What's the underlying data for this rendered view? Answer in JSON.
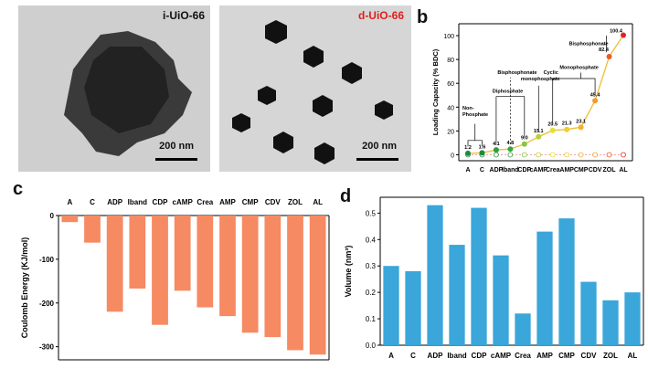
{
  "panels": {
    "a": {
      "letter": "a",
      "left_label": "i-UiO-66",
      "right_label": "d-UiO-66",
      "left_scale": "200 nm",
      "right_scale": "200 nm"
    },
    "b": {
      "letter": "b"
    },
    "c": {
      "letter": "c"
    },
    "d": {
      "letter": "d"
    }
  },
  "colors": {
    "orange_bar": "#f58a63",
    "blue_bar": "#3aa6d9",
    "left_label_color": "#111111",
    "right_label_color": "#e0201b"
  },
  "chart_data": [
    {
      "panel": "b",
      "type": "scatter",
      "categories": [
        "A",
        "C",
        "ADP",
        "Iband",
        "CDP",
        "cAMP",
        "Crea",
        "AMP",
        "CMP",
        "CDV",
        "ZOL",
        "AL"
      ],
      "ylabel": "Loading Capacity (% BDC)",
      "ylim": [
        -5,
        110
      ],
      "yticks": [
        0,
        20,
        40,
        60,
        80,
        100
      ],
      "series": [
        {
          "values": [
            1.2,
            1.6,
            4.1,
            4.8,
            9.0,
            15.1,
            20.5,
            21.3,
            23.1,
            45.4,
            82.4,
            100.4
          ],
          "point_colors": [
            "#1e8a3c",
            "#1e8a3c",
            "#2e9b3e",
            "#3aa342",
            "#8cc63f",
            "#b5d334",
            "#e6e030",
            "#f2cc2e",
            "#f5b02c",
            "#f39a2a",
            "#ea5b25",
            "#e02424"
          ],
          "line_color": "#f0c040"
        },
        {
          "values": [
            0,
            0,
            0,
            0,
            0,
            0,
            0,
            0,
            0,
            0,
            0,
            0
          ],
          "style": "dashed-hollow",
          "point_colors": [
            "#1e8a3c",
            "#1e8a3c",
            "#2e9b3e",
            "#3aa342",
            "#8cc63f",
            "#b5d334",
            "#e6e030",
            "#f2cc2e",
            "#f5b02c",
            "#f39a2a",
            "#ea5b25",
            "#e02424"
          ]
        }
      ],
      "data_labels": [
        "1.2",
        "1.6",
        "4.1",
        "4.8",
        "9.0",
        "15.1",
        "20.5",
        "21.3",
        "23.1",
        "45.4",
        "82.4",
        "100.4"
      ],
      "annotations": {
        "non_phosphate": "Non-\nPhosphate",
        "diphosphate": "Diphosphate",
        "bisphosphonate_low": "Bisphosphonate",
        "cyclic": "Cyclic\nmonophosphate",
        "monophosphate": "Monophosphate",
        "bisphosphonate_high": "Bisphosphonate"
      }
    },
    {
      "panel": "c",
      "type": "bar",
      "categories": [
        "A",
        "C",
        "ADP",
        "Iband",
        "CDP",
        "cAMP",
        "Crea",
        "AMP",
        "CMP",
        "CDV",
        "ZOL",
        "AL"
      ],
      "values": [
        -15,
        -62,
        -220,
        -167,
        -250,
        -172,
        -210,
        -230,
        -268,
        -278,
        -308,
        -318
      ],
      "ylabel": "Coulomb Energy (KJ/mol)",
      "ylim": [
        -330,
        0
      ],
      "yticks": [
        0,
        -100,
        -200,
        -300
      ]
    },
    {
      "panel": "d",
      "type": "bar",
      "categories": [
        "A",
        "C",
        "ADP",
        "Iband",
        "CDP",
        "cAMP",
        "Crea",
        "AMP",
        "CMP",
        "CDV",
        "ZOL",
        "AL"
      ],
      "values": [
        0.3,
        0.28,
        0.53,
        0.38,
        0.52,
        0.34,
        0.12,
        0.43,
        0.48,
        0.24,
        0.17,
        0.2
      ],
      "ylabel": "Volume (nm³)",
      "ylim": [
        0,
        0.56
      ],
      "yticks": [
        0.0,
        0.1,
        0.2,
        0.3,
        0.4,
        0.5
      ]
    }
  ]
}
